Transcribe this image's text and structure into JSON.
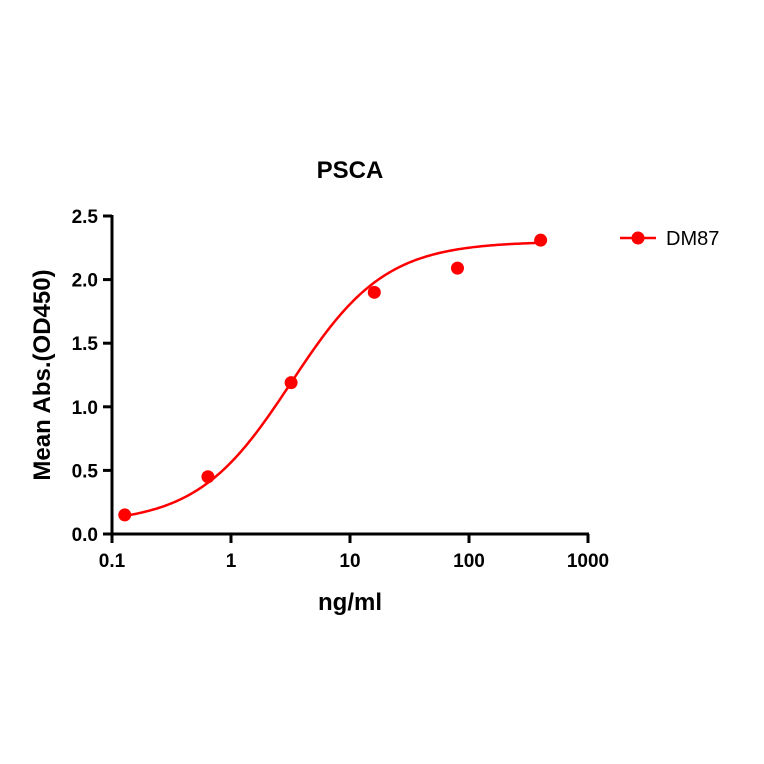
{
  "chart_data": {
    "type": "scatter",
    "title": "PSCA",
    "xlabel": "ng/ml",
    "ylabel": "Mean Abs.(OD450)",
    "xscale": "log",
    "xlim": [
      0.1,
      1000
    ],
    "ylim": [
      0,
      2.5
    ],
    "xticks": [
      "0.1",
      "1",
      "10",
      "100",
      "1000"
    ],
    "yticks": [
      "0.0",
      "0.5",
      "1.0",
      "1.5",
      "2.0",
      "2.5"
    ],
    "grid": false,
    "legend_position": "top-right",
    "series": [
      {
        "name": "DM87",
        "color": "#ff0000",
        "x": [
          0.128,
          0.64,
          3.2,
          16,
          80,
          400
        ],
        "y": [
          0.15,
          0.45,
          1.19,
          1.9,
          2.09,
          2.31
        ],
        "fit": {
          "model": "4PL",
          "bottom": 0.08,
          "top": 2.3,
          "ec50": 3.2,
          "hill": 1.1
        }
      }
    ]
  }
}
